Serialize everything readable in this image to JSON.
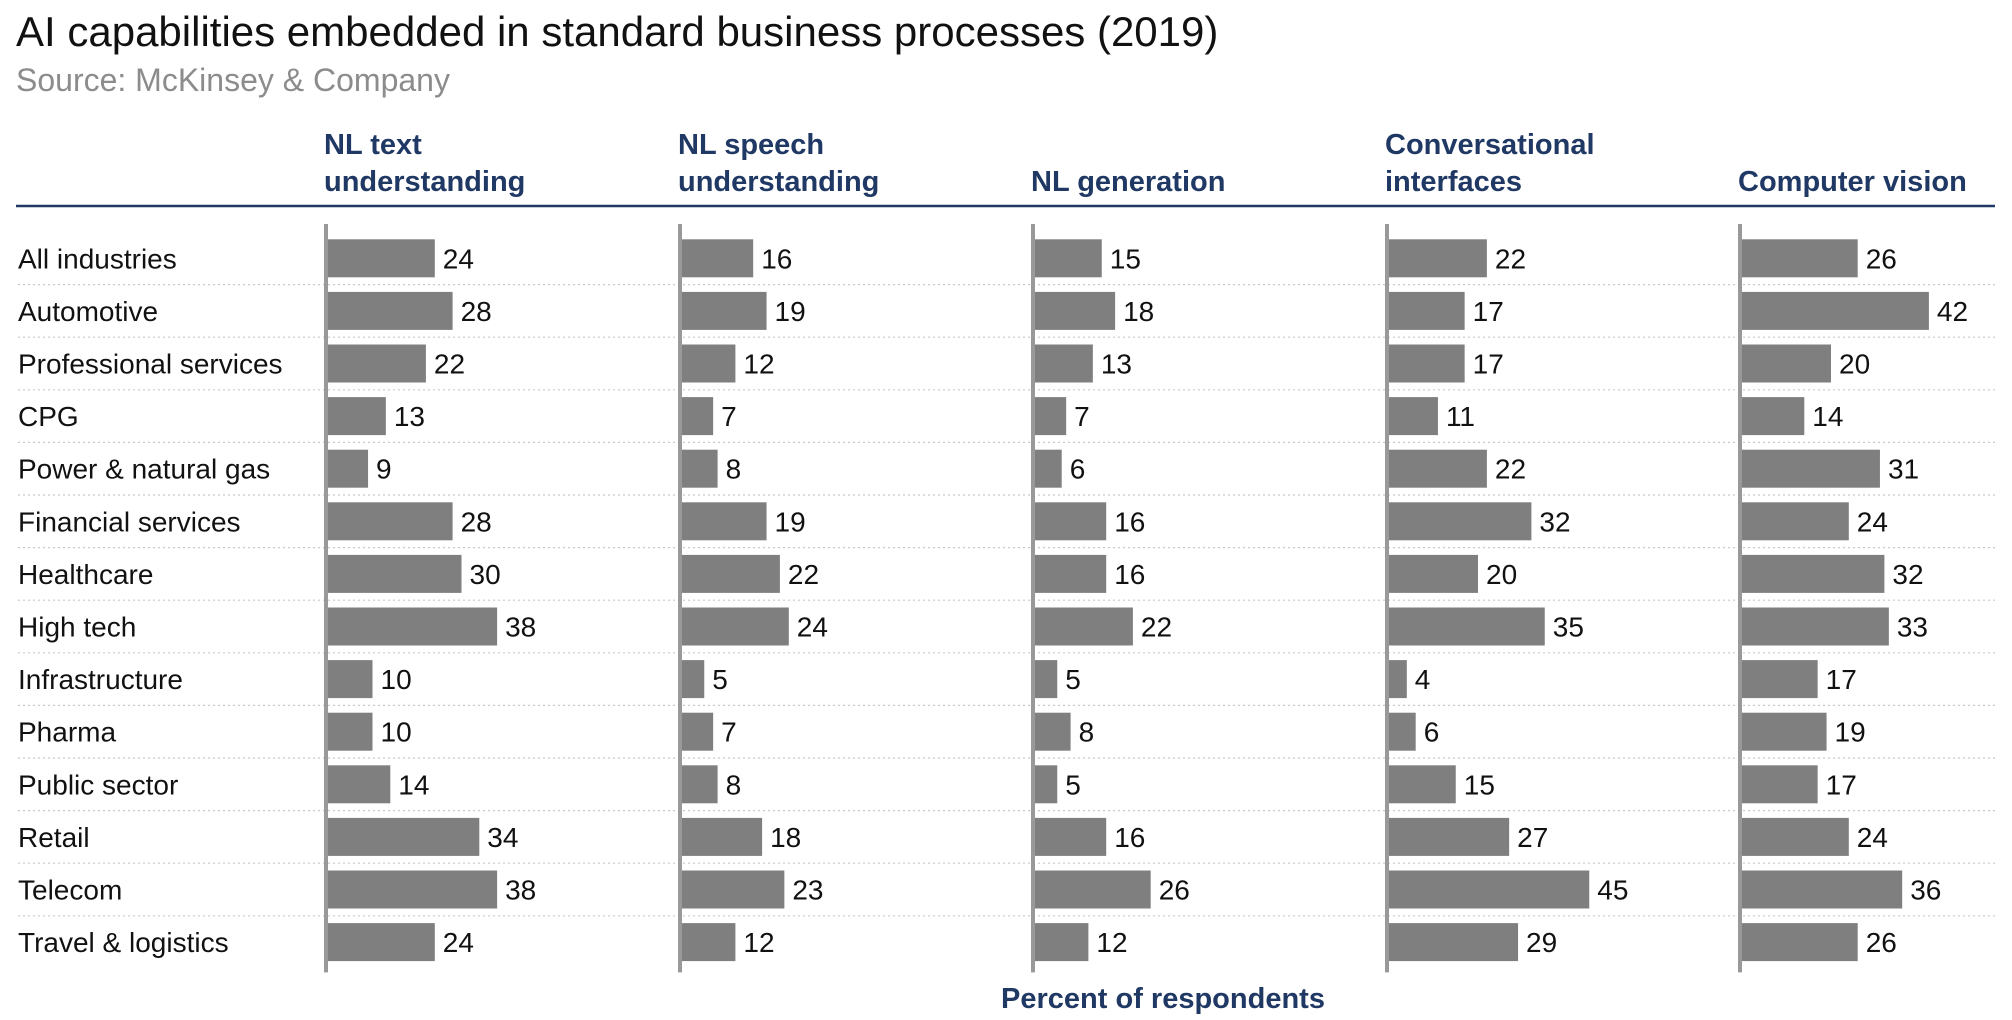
{
  "title": "AI capabilities embedded in standard business processes (2019)",
  "source": "Source: McKinsey & Company",
  "colors": {
    "bar": "#7f7f7f",
    "header": "#1f3864",
    "rule": "#1f3864",
    "grid": "#c8c8c8",
    "text": "#111111"
  },
  "chart_data": {
    "type": "bar",
    "orientation": "horizontal",
    "layout": "small-multiples",
    "xlabel": "Percent of respondents",
    "categories": [
      "All industries",
      "Automotive",
      "Professional services",
      "CPG",
      "Power & natural gas",
      "Financial services",
      "Healthcare",
      "High tech",
      "Infrastructure",
      "Pharma",
      "Public sector",
      "Retail",
      "Telecom",
      "Travel & logistics"
    ],
    "series": [
      {
        "name_lines": [
          "NL text",
          "understanding"
        ],
        "values": [
          24,
          28,
          22,
          13,
          9,
          28,
          30,
          38,
          10,
          10,
          14,
          34,
          38,
          24
        ]
      },
      {
        "name_lines": [
          "NL speech",
          "understanding"
        ],
        "values": [
          16,
          19,
          12,
          7,
          8,
          19,
          22,
          24,
          5,
          7,
          8,
          18,
          23,
          12
        ]
      },
      {
        "name_lines": [
          "",
          "NL generation"
        ],
        "values": [
          15,
          18,
          13,
          7,
          6,
          16,
          16,
          22,
          5,
          8,
          5,
          16,
          26,
          12
        ]
      },
      {
        "name_lines": [
          "Conversational",
          "interfaces"
        ],
        "values": [
          22,
          17,
          17,
          11,
          22,
          32,
          20,
          35,
          4,
          6,
          15,
          27,
          45,
          29
        ]
      },
      {
        "name_lines": [
          "",
          "Computer vision"
        ],
        "values": [
          26,
          42,
          20,
          14,
          31,
          24,
          32,
          33,
          17,
          19,
          17,
          24,
          36,
          26
        ]
      }
    ],
    "xlim": [
      0,
      50
    ],
    "data_labels": true,
    "grid": false
  }
}
